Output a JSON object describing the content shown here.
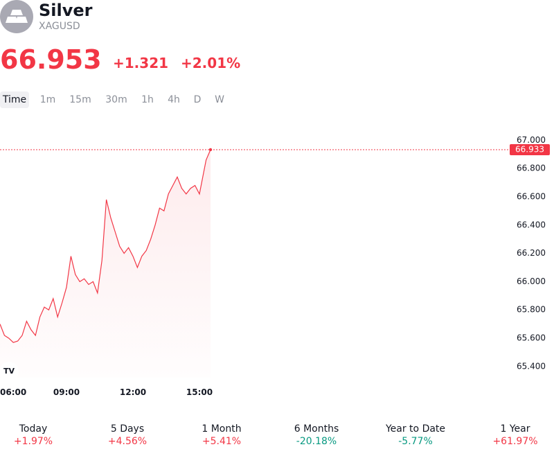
{
  "header": {
    "title": "Silver",
    "symbol": "XAGUSD",
    "icon": "silver-bars-icon"
  },
  "quote": {
    "price": "66.953",
    "change": "+1.321",
    "change_percent": "+2.01%",
    "color": "#f23645"
  },
  "timeframes": [
    "Time",
    "1m",
    "15m",
    "30m",
    "1h",
    "4h",
    "D",
    "W"
  ],
  "active_timeframe": "Time",
  "chart_data": {
    "type": "area",
    "x_ticks": [
      "06:00",
      "09:00",
      "12:00",
      "15:00"
    ],
    "y_ticks": [
      "67.000",
      "66.800",
      "66.600",
      "66.400",
      "66.200",
      "66.000",
      "65.800",
      "65.600",
      "65.400"
    ],
    "ylim": [
      65.37,
      67.07
    ],
    "xlim": [
      6.0,
      16.0
    ],
    "last_value_label": "66.933",
    "last_value": 66.933,
    "line_color": "#f23645",
    "watermark": "TV",
    "series": [
      {
        "x": [
          6.0,
          6.2,
          6.4,
          6.6,
          6.8,
          7.0,
          7.2,
          7.4,
          7.6,
          7.8,
          8.0,
          8.2,
          8.4,
          8.6,
          8.8,
          9.0,
          9.2,
          9.4,
          9.6,
          9.8,
          10.0,
          10.2,
          10.4,
          10.6,
          10.8,
          11.0,
          11.2,
          11.4,
          11.6,
          11.8,
          12.0,
          12.2,
          12.4,
          12.6,
          12.8,
          13.0,
          13.2,
          13.4,
          13.6,
          13.8,
          14.0,
          14.2,
          14.4,
          14.6,
          14.8,
          15.0,
          15.2,
          15.3,
          15.5
        ],
        "values": [
          65.7,
          65.62,
          65.6,
          65.57,
          65.58,
          65.62,
          65.72,
          65.66,
          65.62,
          65.75,
          65.82,
          65.8,
          65.88,
          65.75,
          65.85,
          65.96,
          66.18,
          66.05,
          66.0,
          66.02,
          65.98,
          66.0,
          65.92,
          66.15,
          66.58,
          66.45,
          66.35,
          66.25,
          66.2,
          66.24,
          66.18,
          66.1,
          66.18,
          66.22,
          66.3,
          66.4,
          66.52,
          66.5,
          66.62,
          66.68,
          66.74,
          66.66,
          66.62,
          66.66,
          66.68,
          66.62,
          66.78,
          66.86,
          66.933
        ]
      }
    ]
  },
  "periods": [
    {
      "label": "Today",
      "value": "+1.97%",
      "dir": "up"
    },
    {
      "label": "5 Days",
      "value": "+4.56%",
      "dir": "up"
    },
    {
      "label": "1 Month",
      "value": "+5.41%",
      "dir": "up"
    },
    {
      "label": "6 Months",
      "value": "-20.18%",
      "dir": "down"
    },
    {
      "label": "Year to Date",
      "value": "-5.77%",
      "dir": "down"
    },
    {
      "label": "1 Year",
      "value": "+61.97%",
      "dir": "up"
    }
  ]
}
